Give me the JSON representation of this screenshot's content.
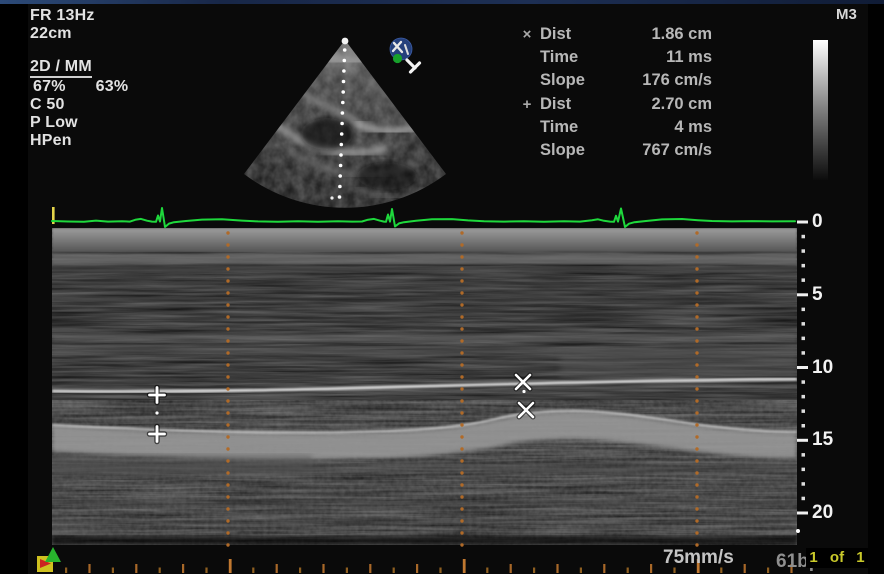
{
  "machine": {
    "preset_label": "M3"
  },
  "info_panel": {
    "frame_rate": "FR 13Hz",
    "depth": "22cm",
    "mode": "2D / MM",
    "gain_2d": "67%",
    "gain_mm": "63%",
    "compression": "C 50",
    "persistence": "P Low",
    "power": "HPen"
  },
  "measurements": [
    {
      "marker": "×",
      "rows": [
        {
          "label": "Dist",
          "value": "1.86 cm"
        },
        {
          "label": "Time",
          "value": "11 ms"
        },
        {
          "label": "Slope",
          "value": "176 cm/s"
        }
      ]
    },
    {
      "marker": "+",
      "rows": [
        {
          "label": "Dist",
          "value": "2.70 cm"
        },
        {
          "label": "Time",
          "value": "4 ms"
        },
        {
          "label": "Slope",
          "value": "767 cm/s"
        }
      ]
    }
  ],
  "depth_scale": {
    "labels": [
      "0",
      "5",
      "10",
      "15",
      "20"
    ]
  },
  "footer": {
    "sweep_speed": "75mm/s",
    "heart_rate": "61bpm",
    "page_indicator": "1 of 1"
  },
  "icons": {
    "probe_orientation_marker": "globe-with-green-dot",
    "caliper_1": "x-caliper",
    "caliper_2": "plus-caliper",
    "cine_marker": "green-triangle",
    "flag_marker": "red-flag-on-yellow"
  },
  "colors": {
    "ecg_trace": "#1ed83c",
    "timeline_ticks": "#b06a28",
    "page_indicator_text": "#c9c92a",
    "top_strip": "#1c2c4d",
    "caliper": "#ffffff"
  }
}
